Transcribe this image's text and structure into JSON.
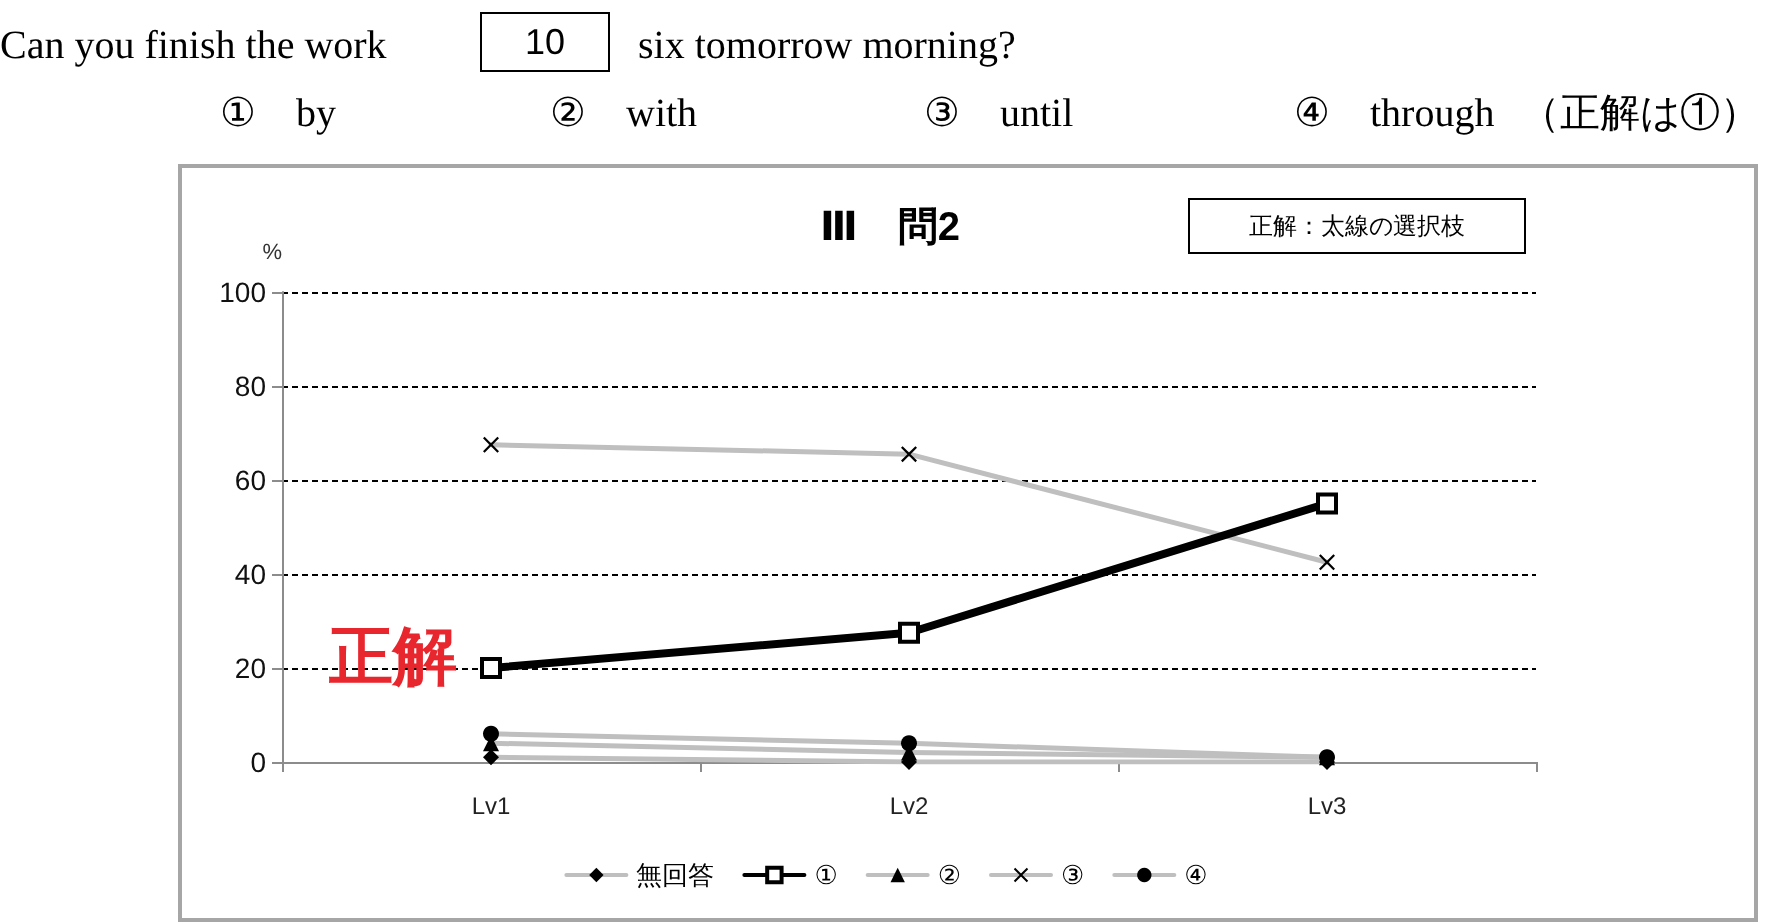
{
  "chart_data": {
    "type": "line",
    "title": "Ⅲ　問2",
    "ylabel": "%",
    "categories": [
      "Lv1",
      "Lv2",
      "Lv3"
    ],
    "series": [
      {
        "name": "無回答",
        "color": "#bfbfbf",
        "marker": "diamond",
        "values": [
          1,
          0,
          0
        ]
      },
      {
        "name": "①",
        "color": "#000000",
        "marker": "square",
        "values": [
          20,
          27.5,
          55
        ]
      },
      {
        "name": "②",
        "color": "#bfbfbf",
        "marker": "triangle",
        "values": [
          4,
          2,
          1
        ]
      },
      {
        "name": "③",
        "color": "#bfbfbf",
        "marker": "cross",
        "values": [
          67.5,
          65.5,
          42.5
        ]
      },
      {
        "name": "④",
        "color": "#bfbfbf",
        "marker": "circle",
        "values": [
          6,
          4,
          1
        ]
      }
    ],
    "ylim": [
      0,
      100
    ],
    "yticks": [
      0,
      20,
      40,
      60,
      80,
      100
    ],
    "grid": "y",
    "legend": "bottom",
    "line_style": "solid",
    "annotations": [
      "Can you finish the work",
      "10",
      "six tomorrow morning?",
      "①　by",
      "②　with",
      "③　until",
      "④　through",
      "（正解は①）",
      "正解：太線の選択枝",
      {
        "text": "正解",
        "x": "Lv1",
        "y": 20
      }
    ]
  }
}
